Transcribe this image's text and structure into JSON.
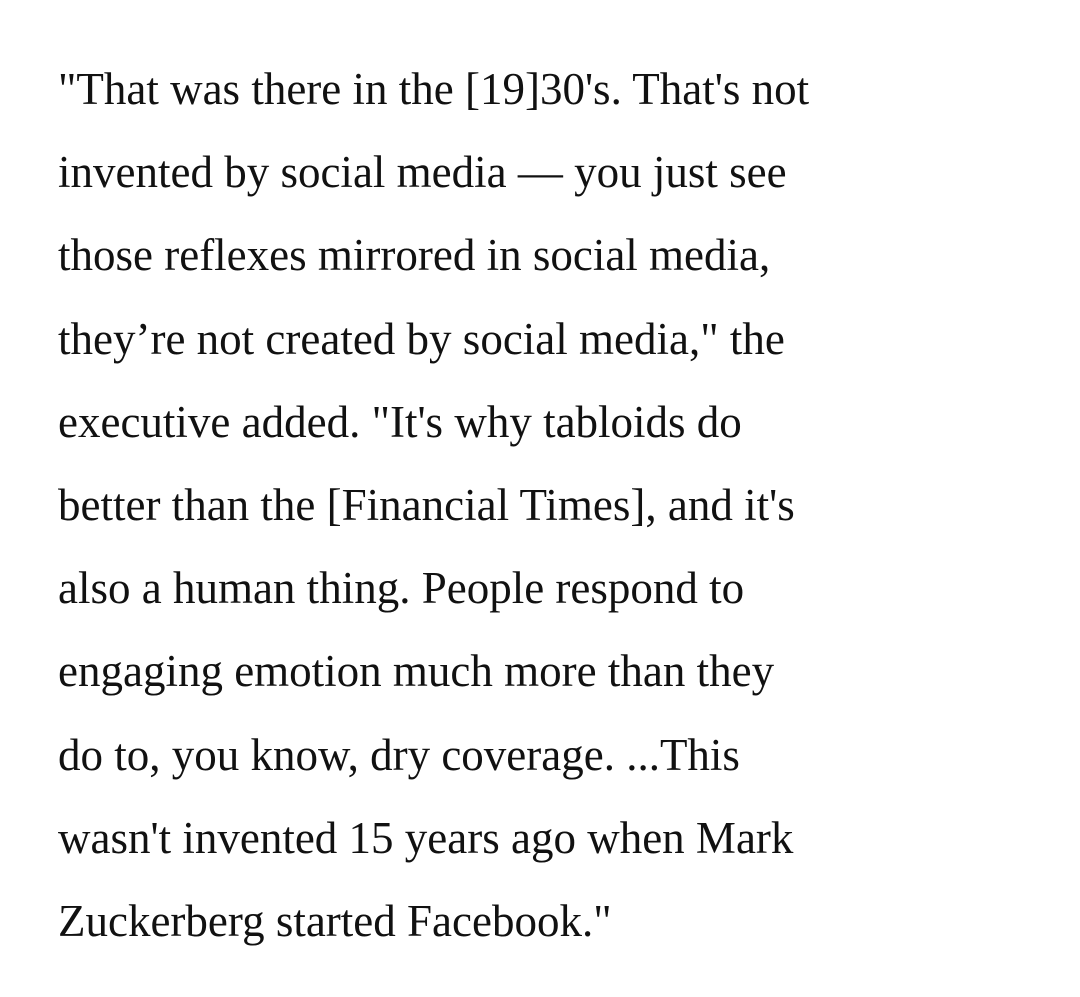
{
  "article": {
    "quote_lines": [
      "\"That was there in the [19]30's. That's not",
      "invented by social media — you just see",
      "those reflexes mirrored in social media,",
      "they’re not created by social media,\" the",
      "executive added. \"It's why tabloids do",
      "better than the [Financial Times], and it's",
      "also a human thing. People respond to",
      "engaging emotion much more than they",
      "do to, you know, dry coverage. ...This",
      "wasn't invented 15 years ago when Mark",
      "Zuckerberg started Facebook.\""
    ]
  }
}
